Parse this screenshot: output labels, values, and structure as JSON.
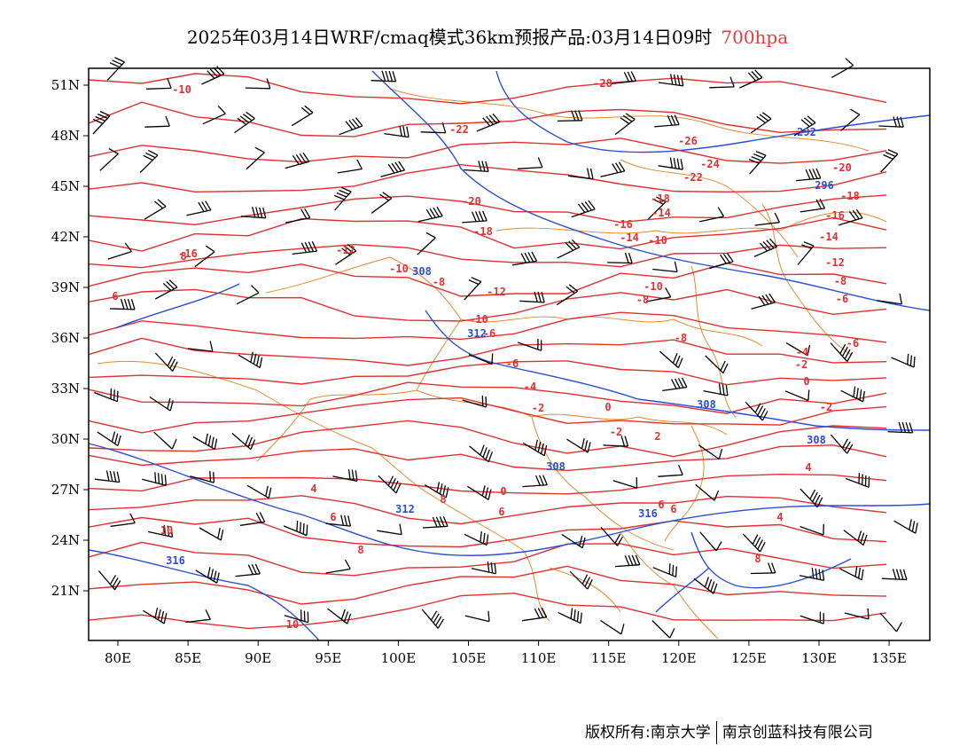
{
  "title": {
    "main": "2025年03月14日WRF/cmaq模式36km预报产品:03月14日09时",
    "level": "700hpa",
    "level_color": "#e83a3a"
  },
  "map": {
    "lon_labels": [
      "80E",
      "85E",
      "90E",
      "95E",
      "100E",
      "105E",
      "110E",
      "115E",
      "120E",
      "125E",
      "130E",
      "135E"
    ],
    "lat_labels": [
      "51N",
      "48N",
      "45N",
      "42N",
      "39N",
      "36N",
      "33N",
      "30N",
      "27N",
      "24N",
      "21N"
    ],
    "temperature_labels": [
      "-10",
      "-28",
      "-22",
      "-26",
      "-24",
      "-20",
      "-22",
      "-18",
      "-20",
      "-18",
      "-16",
      "-16",
      "-14",
      "-18",
      "-14",
      "-12",
      "-10",
      "-10",
      "-8",
      "-16",
      "-14",
      "-12",
      "-12",
      "-10",
      "-8",
      "-10",
      "-8",
      "-6",
      "-6",
      "-8",
      "-6",
      "-6",
      "-4",
      "-4",
      "-2",
      "-2",
      "0",
      "0",
      "-2",
      "-2",
      "2",
      "4",
      "4",
      "0",
      "6",
      "8",
      "6",
      "6",
      "6",
      "4",
      "10",
      "8",
      "8",
      "10",
      "6",
      "8"
    ],
    "height_labels": [
      "292",
      "296",
      "308",
      "312",
      "308",
      "308",
      "308",
      "312",
      "316",
      "316"
    ],
    "colors": {
      "temperature": "#e03030",
      "height": "#2a4fd6",
      "boundary": "#e08a30",
      "wind_barb": "#000000"
    }
  },
  "footer": {
    "left": "版权所有:南京大学",
    "right": "南京创蓝科技有限公司"
  }
}
